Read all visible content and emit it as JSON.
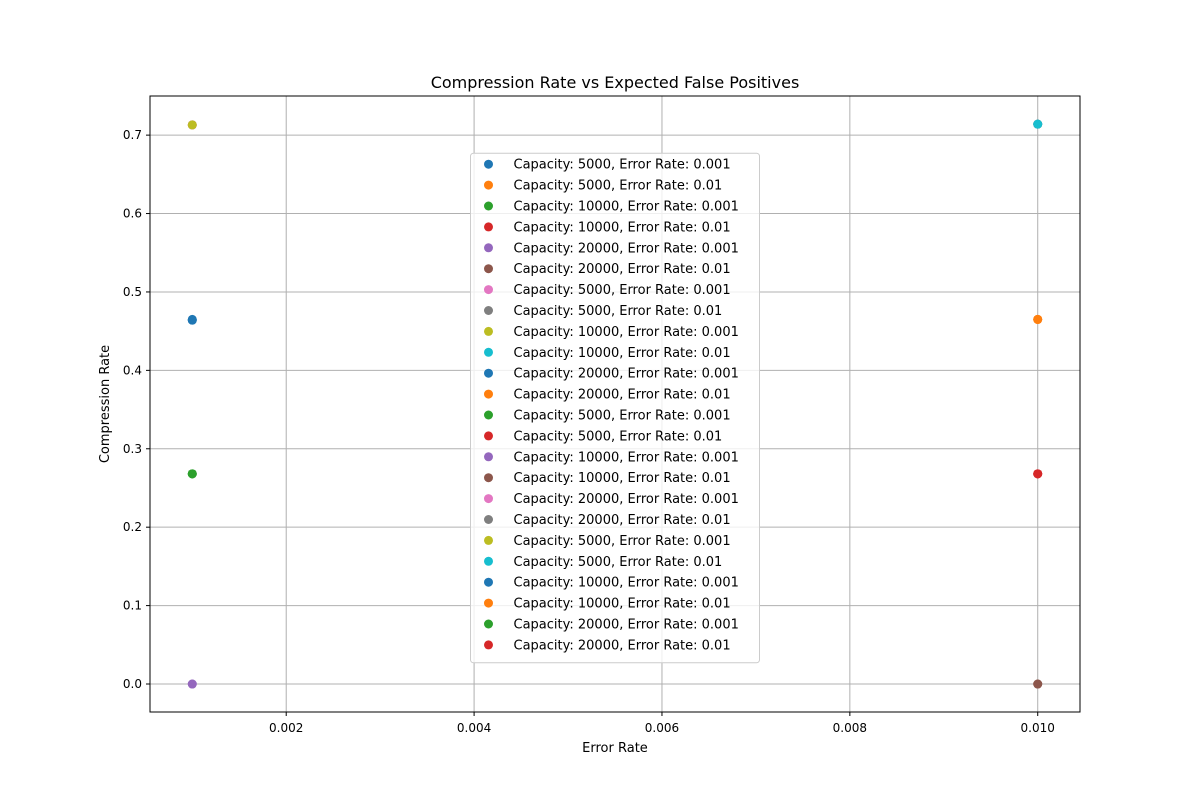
{
  "chart_data": {
    "type": "scatter",
    "title": "Compression Rate vs Expected False Positives",
    "xlabel": "Error Rate",
    "ylabel": "Compression Rate",
    "xlim": [
      0.00055,
      0.01045
    ],
    "ylim": [
      -0.0357,
      0.7499
    ],
    "xticks": [
      0.002,
      0.004,
      0.006,
      0.008,
      0.01
    ],
    "xtick_labels": [
      "0.002",
      "0.004",
      "0.006",
      "0.008",
      "0.010"
    ],
    "yticks": [
      0.0,
      0.1,
      0.2,
      0.3,
      0.4,
      0.5,
      0.6,
      0.7
    ],
    "ytick_labels": [
      "0.0",
      "0.1",
      "0.2",
      "0.3",
      "0.4",
      "0.5",
      "0.6",
      "0.7"
    ],
    "grid": true,
    "legend_position": "center",
    "series": [
      {
        "name": "Capacity: 5000, Error Rate: 0.001",
        "color": "#1f77b4",
        "x": [
          0.001
        ],
        "y": [
          0.465
        ]
      },
      {
        "name": "Capacity: 5000, Error Rate: 0.01",
        "color": "#ff7f0e",
        "x": [
          0.01
        ],
        "y": [
          0.465
        ]
      },
      {
        "name": "Capacity: 10000, Error Rate: 0.001",
        "color": "#2ca02c",
        "x": [
          0.001
        ],
        "y": [
          0.268
        ]
      },
      {
        "name": "Capacity: 10000, Error Rate: 0.01",
        "color": "#d62728",
        "x": [
          0.01
        ],
        "y": [
          0.268
        ]
      },
      {
        "name": "Capacity: 20000, Error Rate: 0.001",
        "color": "#9467bd",
        "x": [
          0.001
        ],
        "y": [
          0.0
        ]
      },
      {
        "name": "Capacity: 20000, Error Rate: 0.01",
        "color": "#8c564b",
        "x": [
          0.01
        ],
        "y": [
          0.0
        ]
      },
      {
        "name": "Capacity: 5000, Error Rate: 0.001",
        "color": "#e377c2",
        "x": [
          0.001
        ],
        "y": [
          0.713
        ]
      },
      {
        "name": "Capacity: 5000, Error Rate: 0.01",
        "color": "#7f7f7f",
        "x": [
          0.01
        ],
        "y": [
          0.714
        ]
      },
      {
        "name": "Capacity: 10000, Error Rate: 0.001",
        "color": "#bcbd22",
        "x": [
          0.001
        ],
        "y": [
          0.713
        ]
      },
      {
        "name": "Capacity: 10000, Error Rate: 0.01",
        "color": "#17becf",
        "x": [
          0.01
        ],
        "y": [
          0.714
        ]
      },
      {
        "name": "Capacity: 20000, Error Rate: 0.001",
        "color": "#1f77b4",
        "x": [
          0.001
        ],
        "y": [
          0.464
        ]
      },
      {
        "name": "Capacity: 20000, Error Rate: 0.01",
        "color": "#ff7f0e",
        "x": [
          0.01
        ],
        "y": [
          0.465
        ]
      },
      {
        "name": "Capacity: 5000, Error Rate: 0.001",
        "color": "#2ca02c",
        "x": [
          0.001
        ],
        "y": [
          0.268
        ]
      },
      {
        "name": "Capacity: 5000, Error Rate: 0.01",
        "color": "#d62728",
        "x": [
          0.01
        ],
        "y": [
          0.268
        ]
      },
      {
        "name": "Capacity: 10000, Error Rate: 0.001",
        "color": "#9467bd",
        "x": [
          0.001
        ],
        "y": [
          0.0
        ]
      },
      {
        "name": "Capacity: 10000, Error Rate: 0.01",
        "color": "#8c564b",
        "x": [
          0.01
        ],
        "y": [
          0.0
        ]
      },
      {
        "name": "Capacity: 20000, Error Rate: 0.001",
        "color": "#e377c2",
        "x": [
          0.001
        ],
        "y": [
          0.713
        ]
      },
      {
        "name": "Capacity: 20000, Error Rate: 0.01",
        "color": "#7f7f7f",
        "x": [
          0.01
        ],
        "y": [
          0.714
        ]
      },
      {
        "name": "Capacity: 5000, Error Rate: 0.001",
        "color": "#bcbd22",
        "x": [
          0.001
        ],
        "y": [
          0.713
        ]
      },
      {
        "name": "Capacity: 5000, Error Rate: 0.01",
        "color": "#17becf",
        "x": [
          0.01
        ],
        "y": [
          0.714
        ]
      },
      {
        "name": "Capacity: 10000, Error Rate: 0.001",
        "color": "#1f77b4",
        "x": [
          0.001
        ],
        "y": [
          0.464
        ]
      },
      {
        "name": "Capacity: 10000, Error Rate: 0.01",
        "color": "#ff7f0e",
        "x": [
          0.01
        ],
        "y": [
          0.465
        ]
      },
      {
        "name": "Capacity: 20000, Error Rate: 0.001",
        "color": "#2ca02c",
        "x": [
          0.001
        ],
        "y": [
          0.268
        ]
      },
      {
        "name": "Capacity: 20000, Error Rate: 0.01",
        "color": "#d62728",
        "x": [
          0.01
        ],
        "y": [
          0.268
        ]
      }
    ]
  }
}
